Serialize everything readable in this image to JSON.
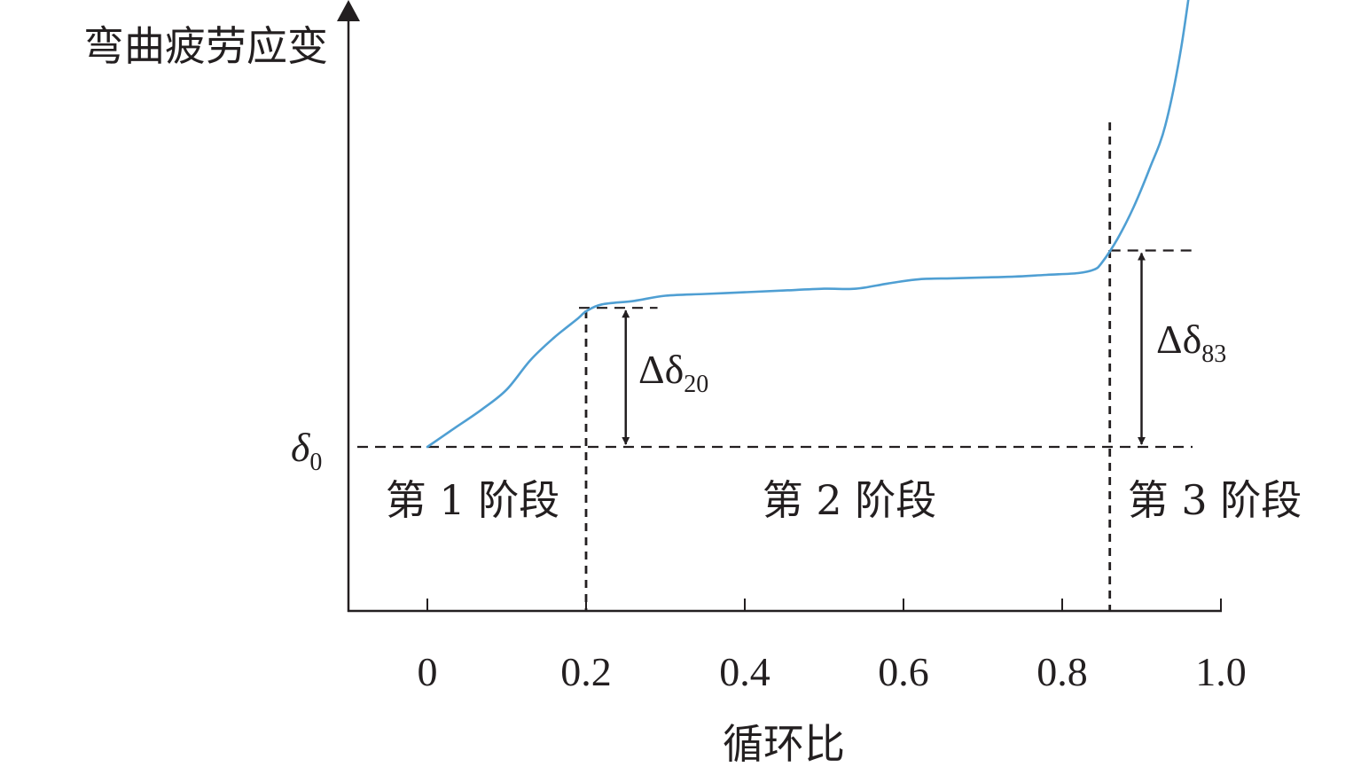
{
  "chart_data": {
    "type": "line",
    "ylabel": "弯曲疲劳应变",
    "xlabel": "循环比",
    "xlim": [
      -0.1,
      1.0
    ],
    "x_ticks": [
      "0",
      "0.2",
      "0.4",
      "0.6",
      "0.8",
      "1.0"
    ],
    "grid": false,
    "series": [
      {
        "color": "#4f9fd3",
        "x": [
          0.0,
          0.035,
          0.07,
          0.1,
          0.13,
          0.16,
          0.19,
          0.2,
          0.22,
          0.26,
          0.3,
          0.35,
          0.4,
          0.45,
          0.5,
          0.54,
          0.58,
          0.62,
          0.66,
          0.7,
          0.74,
          0.78,
          0.82,
          0.84,
          0.85,
          0.87,
          0.89,
          0.91,
          0.93,
          0.95,
          0.97,
          0.99,
          1.0
        ],
        "y": [
          0.0,
          0.11,
          0.22,
          0.33,
          0.5,
          0.63,
          0.74,
          0.78,
          0.82,
          0.84,
          0.87,
          0.88,
          0.89,
          0.9,
          0.91,
          0.91,
          0.94,
          0.965,
          0.97,
          0.975,
          0.98,
          0.99,
          1.0,
          1.02,
          1.06,
          1.2,
          1.38,
          1.6,
          1.85,
          2.3,
          2.95,
          3.7,
          4.2
        ]
      }
    ],
    "y_reference_label": "δ",
    "y_reference_sub": "0",
    "stage_boundaries": [
      0.2,
      0.86
    ],
    "stages": [
      "第 1 阶段",
      "第 2 阶段",
      "第 3 阶段"
    ],
    "annotations": [
      {
        "at_x": 0.25,
        "symbol": "Δδ",
        "sub": "20"
      },
      {
        "at_x": 0.9,
        "symbol": "Δδ",
        "sub": "83"
      }
    ]
  }
}
